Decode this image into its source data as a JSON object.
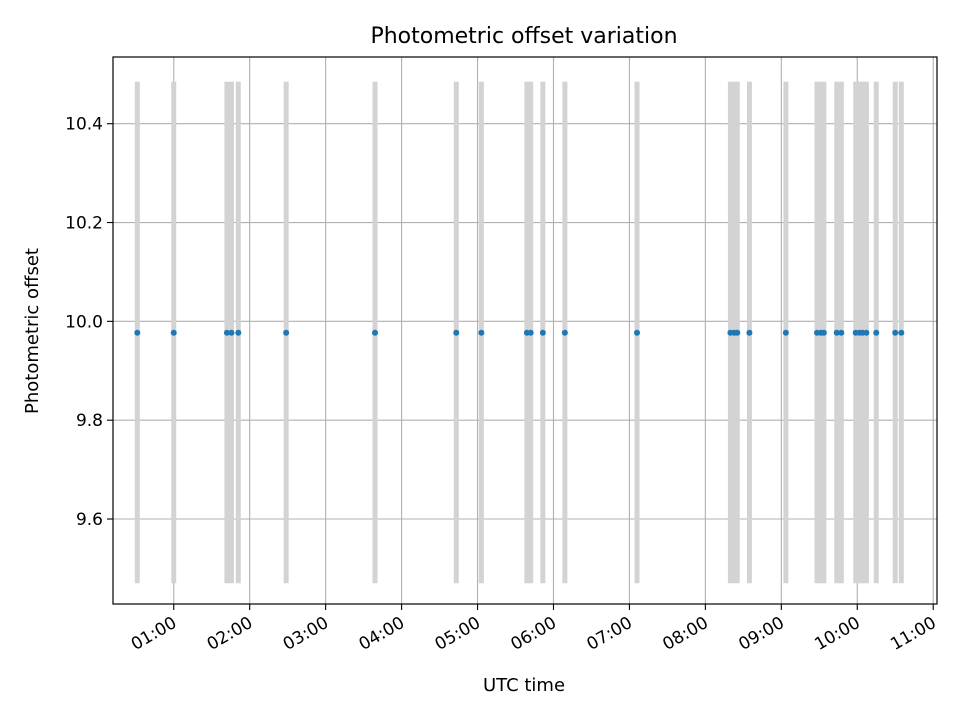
{
  "chart_data": {
    "type": "scatter",
    "title": "Photometric offset variation",
    "xlabel": "UTC time",
    "ylabel": "Photometric offset",
    "x_unit": "UTC hours",
    "xlim": [
      0.2,
      11.05
    ],
    "ylim": [
      9.428,
      10.535
    ],
    "x_ticks": [
      {
        "value": 1,
        "label": "01:00"
      },
      {
        "value": 2,
        "label": "02:00"
      },
      {
        "value": 3,
        "label": "03:00"
      },
      {
        "value": 4,
        "label": "04:00"
      },
      {
        "value": 5,
        "label": "05:00"
      },
      {
        "value": 6,
        "label": "06:00"
      },
      {
        "value": 7,
        "label": "07:00"
      },
      {
        "value": 8,
        "label": "08:00"
      },
      {
        "value": 9,
        "label": "09:00"
      },
      {
        "value": 10,
        "label": "10:00"
      },
      {
        "value": 11,
        "label": "11:00"
      }
    ],
    "y_ticks": [
      {
        "value": 9.6,
        "label": "9.6"
      },
      {
        "value": 9.8,
        "label": "9.8"
      },
      {
        "value": 10.0,
        "label": "10.0"
      },
      {
        "value": 10.2,
        "label": "10.2"
      },
      {
        "value": 10.4,
        "label": "10.4"
      }
    ],
    "grid": true,
    "point_color": "#1f77b4",
    "band_color": "#d3d3d3",
    "band_range": [
      9.47,
      10.485
    ],
    "bands": [
      0.52,
      1.0,
      1.7,
      1.76,
      1.85,
      2.48,
      3.65,
      4.72,
      5.05,
      5.65,
      5.7,
      5.86,
      6.15,
      7.1,
      8.33,
      8.38,
      8.42,
      8.58,
      9.06,
      9.47,
      9.52,
      9.56,
      9.73,
      9.79,
      9.98,
      10.03,
      10.07,
      10.12,
      10.25,
      10.5,
      10.58
    ],
    "points": [
      {
        "x": 0.52,
        "y": 9.977
      },
      {
        "x": 1.0,
        "y": 9.977
      },
      {
        "x": 1.7,
        "y": 9.977
      },
      {
        "x": 1.76,
        "y": 9.977
      },
      {
        "x": 1.85,
        "y": 9.977
      },
      {
        "x": 2.48,
        "y": 9.977
      },
      {
        "x": 3.65,
        "y": 9.977
      },
      {
        "x": 4.72,
        "y": 9.977
      },
      {
        "x": 5.05,
        "y": 9.977
      },
      {
        "x": 5.65,
        "y": 9.977
      },
      {
        "x": 5.7,
        "y": 9.977
      },
      {
        "x": 5.86,
        "y": 9.977
      },
      {
        "x": 6.15,
        "y": 9.977
      },
      {
        "x": 7.1,
        "y": 9.977
      },
      {
        "x": 8.33,
        "y": 9.977
      },
      {
        "x": 8.38,
        "y": 9.977
      },
      {
        "x": 8.42,
        "y": 9.977
      },
      {
        "x": 8.58,
        "y": 9.977
      },
      {
        "x": 9.06,
        "y": 9.977
      },
      {
        "x": 9.47,
        "y": 9.977
      },
      {
        "x": 9.52,
        "y": 9.977
      },
      {
        "x": 9.56,
        "y": 9.977
      },
      {
        "x": 9.73,
        "y": 9.977
      },
      {
        "x": 9.79,
        "y": 9.977
      },
      {
        "x": 9.98,
        "y": 9.977
      },
      {
        "x": 10.03,
        "y": 9.977
      },
      {
        "x": 10.07,
        "y": 9.977
      },
      {
        "x": 10.12,
        "y": 9.977
      },
      {
        "x": 10.25,
        "y": 9.977
      },
      {
        "x": 10.5,
        "y": 9.977
      },
      {
        "x": 10.58,
        "y": 9.977
      }
    ]
  }
}
